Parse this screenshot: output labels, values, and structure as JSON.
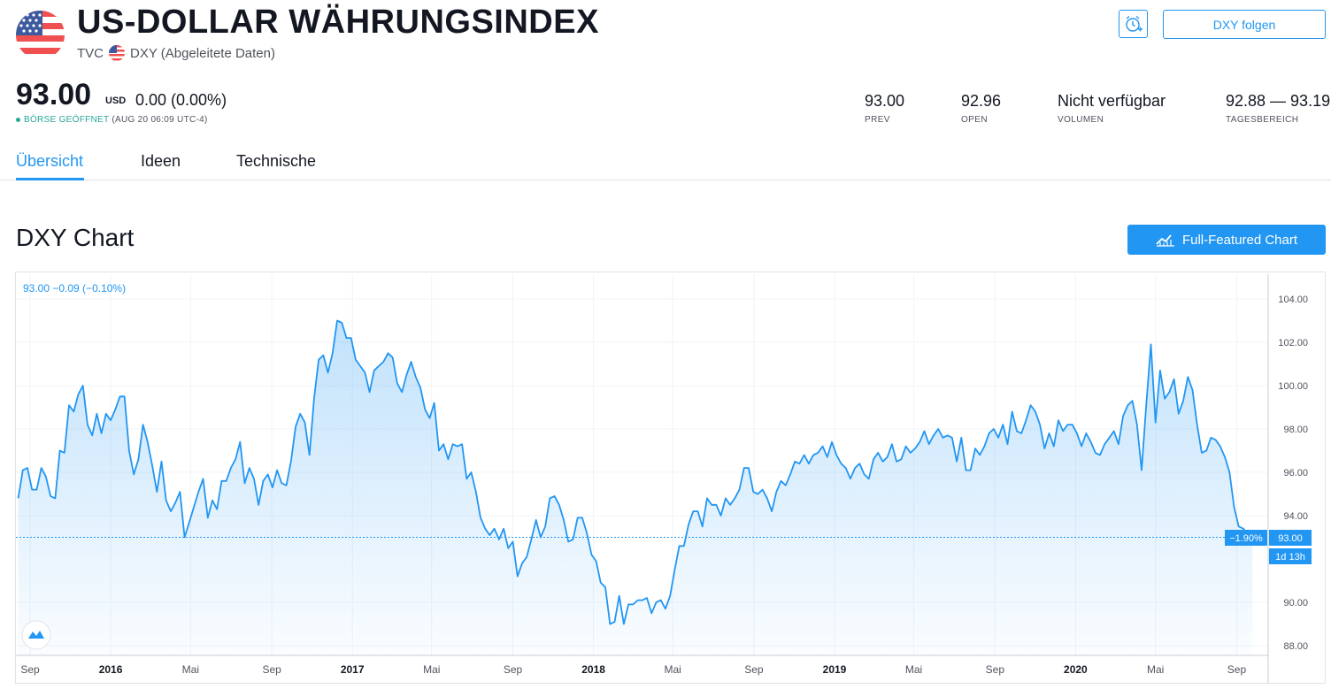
{
  "header": {
    "title": "US-DOLLAR WÄHRUNGSINDEX",
    "exchange": "TVC",
    "symbol_desc": "DXY (Abgeleitete Daten)",
    "follow_label": "DXY folgen"
  },
  "quote": {
    "price": "93.00",
    "currency": "USD",
    "change": "0.00 (0.00%)",
    "market_status": "BÖRSE GEÖFFNET",
    "timestamp": "(AUG 20 06:09 UTC-4)"
  },
  "stats": [
    {
      "value": "93.00",
      "label": "PREV"
    },
    {
      "value": "92.96",
      "label": "OPEN"
    },
    {
      "value": "Nicht verfügbar",
      "label": "VOLUMEN"
    },
    {
      "value": "92.88 — 93.19",
      "label": "TAGESBEREICH"
    }
  ],
  "tabs": [
    {
      "label": "Übersicht",
      "active": true
    },
    {
      "label": "Ideen",
      "active": false
    },
    {
      "label": "Technische",
      "active": false
    }
  ],
  "chart_section": {
    "title": "DXY Chart",
    "full_chart_label": "Full-Featured Chart",
    "legend": "93.00  −0.09 (−0.10%)",
    "last_price_label": "93.00",
    "pct_change_label": "−1.90%",
    "countdown_label": "1d 13h"
  },
  "colors": {
    "accent": "#2196f3",
    "line": "#2196f3",
    "open_status": "#26a69a"
  },
  "icons": {
    "alarm": "alarm-clock-plus-icon",
    "chart": "chart-line-icon",
    "logo": "tradingview-logo-icon"
  },
  "chart_data": {
    "type": "area",
    "x_ticks": [
      "Sep",
      "2016",
      "Mai",
      "Sep",
      "2017",
      "Mai",
      "Sep",
      "2018",
      "Mai",
      "Sep",
      "2019",
      "Mai",
      "Sep",
      "2020",
      "Mai",
      "Sep"
    ],
    "y_ticks": [
      "104.00",
      "102.00",
      "100.00",
      "98.00",
      "96.00",
      "94.00",
      "90.00",
      "88.00"
    ],
    "ylim": [
      87.5,
      105
    ],
    "x_start": "2015-08-14",
    "interval": "weekly",
    "values": [
      94.8,
      96.1,
      96.2,
      95.2,
      95.2,
      96.2,
      95.8,
      94.9,
      94.8,
      97.0,
      96.9,
      99.1,
      98.8,
      99.6,
      100.0,
      98.2,
      97.7,
      98.7,
      97.8,
      98.7,
      98.4,
      98.9,
      99.5,
      99.5,
      97.0,
      95.9,
      96.6,
      98.2,
      97.4,
      96.3,
      95.1,
      96.5,
      94.7,
      94.2,
      94.6,
      95.1,
      93.0,
      93.7,
      94.4,
      95.1,
      95.7,
      93.9,
      94.7,
      94.3,
      95.6,
      95.6,
      96.2,
      96.6,
      97.4,
      95.5,
      96.2,
      95.7,
      94.5,
      95.6,
      95.9,
      95.3,
      96.1,
      95.5,
      95.4,
      96.5,
      98.1,
      98.7,
      98.3,
      96.8,
      99.4,
      101.2,
      101.4,
      100.6,
      101.5,
      103.0,
      102.9,
      102.2,
      102.2,
      101.2,
      100.9,
      100.6,
      99.7,
      100.7,
      100.9,
      101.1,
      101.5,
      101.3,
      100.1,
      99.7,
      100.5,
      101.1,
      100.4,
      99.9,
      98.9,
      98.5,
      99.2,
      97.0,
      97.3,
      96.6,
      97.3,
      97.2,
      97.3,
      95.7,
      96.0,
      95.1,
      93.9,
      93.4,
      93.1,
      93.4,
      92.9,
      93.4,
      92.5,
      92.8,
      91.2,
      91.8,
      92.1,
      92.9,
      93.8,
      93.0,
      93.5,
      94.8,
      94.9,
      94.5,
      93.8,
      92.8,
      92.9,
      93.9,
      93.9,
      93.2,
      92.2,
      91.9,
      90.9,
      90.7,
      89.0,
      89.1,
      90.3,
      89.0,
      89.9,
      89.9,
      90.1,
      90.1,
      90.2,
      89.5,
      90.0,
      90.1,
      89.7,
      90.3,
      91.5,
      92.6,
      92.6,
      93.6,
      94.2,
      94.2,
      93.5,
      94.8,
      94.5,
      94.5,
      94.0,
      94.8,
      94.5,
      94.8,
      95.2,
      96.2,
      96.2,
      95.1,
      95.0,
      95.2,
      94.8,
      94.2,
      95.1,
      95.6,
      95.4,
      95.9,
      96.5,
      96.4,
      96.8,
      96.4,
      96.8,
      96.9,
      97.2,
      96.7,
      97.4,
      96.8,
      96.4,
      96.2,
      95.7,
      96.2,
      96.4,
      95.9,
      95.7,
      96.6,
      96.9,
      96.5,
      96.7,
      97.3,
      96.5,
      96.6,
      97.2,
      96.9,
      97.1,
      97.4,
      97.9,
      97.3,
      97.7,
      98.0,
      97.6,
      97.7,
      97.6,
      96.5,
      97.6,
      96.1,
      96.1,
      97.1,
      96.8,
      97.2,
      97.8,
      98.0,
      97.6,
      98.2,
      97.3,
      98.8,
      97.9,
      97.8,
      98.4,
      99.1,
      98.8,
      98.2,
      97.1,
      97.8,
      97.2,
      98.4,
      97.9,
      98.2,
      98.2,
      97.8,
      97.2,
      97.8,
      97.4,
      96.9,
      96.8,
      97.3,
      97.6,
      97.9,
      97.3,
      98.6,
      99.1,
      99.3,
      98.2,
      96.1,
      99.1,
      101.9,
      98.3,
      100.7,
      99.4,
      99.7,
      100.3,
      98.7,
      99.3,
      100.4,
      99.8,
      98.2,
      96.9,
      97.0,
      97.6,
      97.5,
      97.2,
      96.7,
      96.0,
      94.4,
      93.5,
      93.4,
      93.1,
      93.0
    ]
  }
}
